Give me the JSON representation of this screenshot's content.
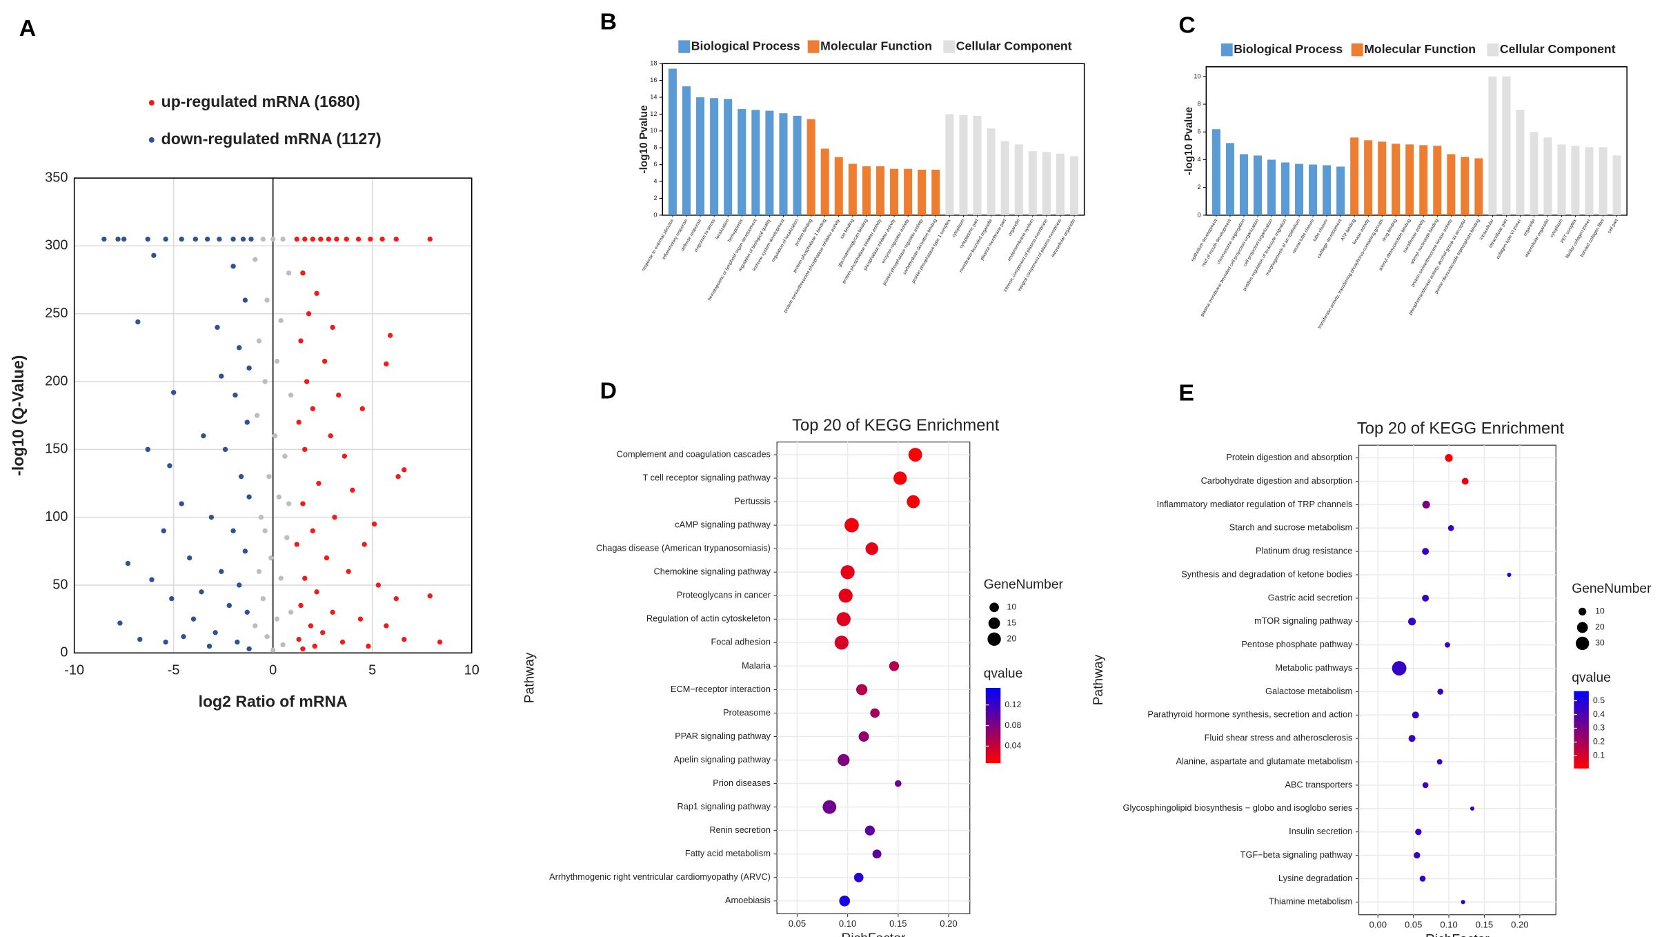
{
  "chart_data": [
    {
      "type": "scatter",
      "panel": "A",
      "xlabel": "log2 Ratio of mRNA",
      "ylabel": "-log10 (Q-Value)",
      "xlim": [
        -10,
        10
      ],
      "ylim": [
        0,
        350
      ],
      "xticks": [
        -10,
        -5,
        0,
        5,
        10
      ],
      "yticks": [
        0,
        50,
        100,
        150,
        200,
        250,
        300,
        350
      ],
      "grid": true,
      "series": [
        {
          "color": "#bdbdbd",
          "x": [
            -0.5,
            0,
            0.5,
            -0.9,
            0.8,
            -0.3,
            0.4,
            -0.7,
            0.2,
            -0.4,
            0.9,
            -0.8,
            0.1,
            0.6,
            -0.2,
            0.3,
            -0.6,
            0.7,
            -0.1,
            0.4,
            -0.5,
            0.2,
            -0.3,
            0.5,
            0,
            -0.9,
            0.9,
            -0.7,
            0.8,
            -0.4
          ],
          "values": [
            305,
            305,
            305,
            290,
            280,
            260,
            245,
            230,
            215,
            200,
            190,
            175,
            160,
            145,
            130,
            115,
            100,
            85,
            70,
            55,
            40,
            25,
            12,
            6,
            2,
            20,
            30,
            60,
            110,
            90
          ]
        },
        {
          "name": "up-regulated mRNA (1680)",
          "color": "#f21b1b",
          "x": [
            1.2,
            1.6,
            2,
            2.4,
            2.8,
            3.2,
            3.7,
            4.3,
            4.9,
            5.5,
            6.2,
            7.9,
            1.5,
            2.2,
            1.8,
            3.0,
            5.9,
            1.4,
            2.6,
            5.7,
            1.7,
            3.3,
            2.0,
            4.5,
            1.3,
            2.9,
            1.6,
            3.6,
            6.6,
            6.3,
            2.3,
            4.0,
            1.5,
            3.1,
            5.1,
            2.0,
            1.2,
            4.6,
            2.7,
            3.8,
            1.6,
            5.3,
            2.2,
            6.2,
            7.9,
            1.4,
            3.0,
            4.4,
            1.9,
            2.5,
            6.6,
            8.4,
            1.3,
            3.5,
            2.1,
            1.5,
            4.8,
            5.7
          ],
          "values": [
            305,
            305,
            305,
            305,
            305,
            305,
            305,
            305,
            305,
            305,
            305,
            305,
            280,
            265,
            250,
            240,
            234,
            230,
            215,
            213,
            200,
            190,
            180,
            180,
            170,
            160,
            150,
            145,
            135,
            130,
            125,
            120,
            110,
            100,
            95,
            90,
            80,
            80,
            70,
            60,
            55,
            50,
            45,
            40,
            42,
            35,
            30,
            25,
            20,
            15,
            10,
            8,
            10,
            8,
            5,
            3,
            5,
            20
          ]
        },
        {
          "name": "down-regulated mRNA (1127)",
          "color": "#2d5296",
          "x": [
            -8.5,
            -7.8,
            -7.5,
            -6.3,
            -5.4,
            -4.6,
            -3.9,
            -3.3,
            -2.7,
            -2.0,
            -1.5,
            -1.1,
            -6.0,
            -6.8,
            -2.0,
            -1.4,
            -2.8,
            -1.7,
            -1.2,
            -2.6,
            -5.0,
            -6.3,
            -1.9,
            -1.3,
            -3.5,
            -5.2,
            -2.4,
            -1.6,
            -4.6,
            -1.2,
            -3.1,
            -2.0,
            -5.5,
            -1.4,
            -7.3,
            -4.2,
            -2.6,
            -6.1,
            -1.7,
            -3.6,
            -5.1,
            -2.2,
            -7.7,
            -1.3,
            -4.0,
            -6.7,
            -2.9,
            -1.8,
            -5.4,
            -3.2,
            -1.2,
            -4.5
          ],
          "values": [
            305,
            305,
            305,
            305,
            305,
            305,
            305,
            305,
            305,
            305,
            305,
            305,
            293,
            244,
            285,
            260,
            240,
            225,
            210,
            204,
            192,
            150,
            190,
            170,
            160,
            138,
            150,
            130,
            110,
            115,
            100,
            90,
            90,
            75,
            66,
            70,
            60,
            54,
            50,
            45,
            40,
            35,
            22,
            30,
            25,
            10,
            15,
            8,
            8,
            5,
            3,
            12
          ]
        }
      ]
    },
    {
      "type": "bar",
      "panel": "B",
      "ylabel": "-log10 Pvalue",
      "ylim": [
        0,
        18
      ],
      "yticks": [
        0,
        2,
        4,
        6,
        8,
        10,
        12,
        14,
        16,
        18
      ],
      "series": [
        {
          "name": "Biological Process",
          "color": "#5b9bd5",
          "categories": [
            "response to external stimulus",
            "inflammatory response",
            "defense response",
            "response to stress",
            "localization",
            "hemopoiesis",
            "hematopoietic or lymphoid organ development",
            "regulation of biological quality",
            "immune system development",
            "regulation of localization"
          ],
          "values": [
            17.4,
            15.3,
            14.0,
            13.9,
            13.8,
            12.6,
            12.5,
            12.4,
            12.1,
            11.8
          ]
        },
        {
          "name": "Molecular Function",
          "color": "#ed7d31",
          "categories": [
            "protein binding",
            "protein phosphatase 1 binding",
            "protein serine/threonine phosphatase inhibitor activity",
            "ion binding",
            "glycosaminoglycan binding",
            "protein phosphatase inhibitor activity",
            "phosphatase inhibitor activity",
            "enzyme regulator activity",
            "protein phosphatase regulator activity",
            "carbohydrate derivative binding"
          ],
          "values": [
            11.4,
            7.9,
            6.9,
            6.1,
            5.8,
            5.8,
            5.5,
            5.5,
            5.4,
            5.4
          ]
        },
        {
          "name": "Cellular Component",
          "color": "#e0e0e0",
          "categories": [
            "protein phosphatase type 1 complex",
            "cytoplasm",
            "cytoplasmic part",
            "membrane-bounded organelle",
            "plasma membrane part",
            "organelle",
            "endomembrane system",
            "intrinsic component of plasma membrane",
            "integral component of plasma membrane",
            "intracellular organelle"
          ],
          "values": [
            12.0,
            11.9,
            11.8,
            10.3,
            8.8,
            8.4,
            7.6,
            7.5,
            7.3,
            7.0
          ]
        }
      ]
    },
    {
      "type": "bar",
      "panel": "C",
      "ylabel": "-log10 Pvalue",
      "ylim": [
        0,
        10.7
      ],
      "yticks": [
        0,
        2,
        4,
        6,
        8,
        10
      ],
      "series": [
        {
          "name": "Biological Process",
          "color": "#5b9bd5",
          "categories": [
            "epithelium development",
            "roof of mouth development",
            "chromosome segregation",
            "plasma membrane bounded cell projection organization",
            "cell projection organization",
            "positive regulation of leukocyte migration",
            "morphogenesis of an epithelium",
            "neural tube closure",
            "tube closure",
            "cartilage development"
          ],
          "values": [
            6.2,
            5.2,
            4.4,
            4.3,
            4.0,
            3.8,
            3.7,
            3.65,
            3.6,
            3.5
          ]
        },
        {
          "name": "Molecular Function",
          "color": "#ed7d31",
          "categories": [
            "ATP binding",
            "kinase activity",
            "transferase activity, transferring phosphorus-containing groups",
            "drug binding",
            "adenyl ribonucleotide binding",
            "transferase activity",
            "adenyl nucleotide binding",
            "protein serine/threonine kinase activity",
            "phosphotransferase activity, alcohol group as acceptor",
            "purine ribonucleoside triphosphate binding"
          ],
          "values": [
            5.6,
            5.4,
            5.3,
            5.15,
            5.1,
            5.05,
            5.0,
            4.4,
            4.2,
            4.1
          ]
        },
        {
          "name": "Cellular Component",
          "color": "#e0e0e0",
          "categories": [
            "intracellular",
            "intracellular part",
            "collagen type VI trimer",
            "organelle",
            "intracellular organelle",
            "cytoplasm",
            "PET complex",
            "fibrillar collagen trimer",
            "banded collagen fibril",
            "cell part"
          ],
          "values": [
            10.0,
            10.0,
            7.6,
            6.0,
            5.6,
            5.1,
            5.0,
            4.9,
            4.9,
            4.3
          ]
        }
      ]
    },
    {
      "type": "bubble",
      "panel": "D",
      "title": "Top 20 of KEGG Enrichment",
      "xlabel": "RichFactor",
      "ylabel": "Pathway",
      "categories": [
        "Complement and coagulation cascades",
        "T cell receptor signaling pathway",
        "Pertussis",
        "cAMP signaling pathway",
        "Chagas disease (American trypanosomiasis)",
        "Chemokine signaling pathway",
        "Proteoglycans in cancer",
        "Regulation of actin cytoskeleton",
        "Focal adhesion",
        "Malaria",
        "ECM−receptor interaction",
        "Proteasome",
        "PPAR signaling pathway",
        "Apelin signaling pathway",
        "Prion diseases",
        "Rap1 signaling pathway",
        "Renin secretion",
        "Fatty acid metabolism",
        "Arrhythmogenic right ventricular cardiomyopathy (ARVC)",
        "Amoebiasis"
      ],
      "x": [
        0.167,
        0.152,
        0.165,
        0.104,
        0.124,
        0.1,
        0.098,
        0.096,
        0.094,
        0.146,
        0.114,
        0.127,
        0.116,
        0.096,
        0.15,
        0.082,
        0.122,
        0.129,
        0.111,
        0.097
      ],
      "sizes": [
        21,
        20,
        19,
        23,
        18,
        22,
        22,
        22,
        22,
        11,
        14,
        10,
        12,
        16,
        5,
        21,
        11,
        9,
        10,
        13
      ],
      "qvalues": [
        0.005,
        0.01,
        0.01,
        0.015,
        0.02,
        0.02,
        0.02,
        0.025,
        0.03,
        0.05,
        0.05,
        0.06,
        0.07,
        0.08,
        0.09,
        0.09,
        0.1,
        0.1,
        0.13,
        0.14
      ],
      "xlim": [
        0.03,
        0.221
      ],
      "xticks": [
        0.05,
        {
          "value": 0.1,
          "label": "0.10"
        },
        0.15,
        {
          "value": 0.2,
          "label": "0.20"
        }
      ],
      "grid": true,
      "size_title": "GeneNumber",
      "size_ticks": [
        10,
        15,
        20
      ],
      "color_title": "qvalue",
      "color_lim": [
        0.007,
        0.153
      ],
      "color_ticks": [
        0.04,
        0.08,
        0.12
      ],
      "colors": [
        "#ff0000",
        "#0000ff"
      ]
    },
    {
      "type": "bubble",
      "panel": "E",
      "title": "Top 20 of KEGG Enrichment",
      "xlabel": "RichFactor",
      "ylabel": "Pathway",
      "categories": [
        "Protein digestion and absorption",
        "Carbohydrate digestion and absorption",
        "Inflammatory mediator regulation of TRP channels",
        "Starch and sucrose metabolism",
        "Platinum drug resistance",
        "Synthesis and degradation of ketone bodies",
        "Gastric acid secretion",
        "mTOR signaling pathway",
        "Pentose phosphate pathway",
        "Metabolic pathways",
        "Galactose metabolism",
        "Parathyroid hormone synthesis, secretion and action",
        "Fluid shear stress and atherosclerosis",
        "Alanine, aspartate and glutamate metabolism",
        "ABC transporters",
        "Glycosphingolipid biosynthesis − globo and isoglobo series",
        "Insulin secretion",
        "TGF−beta signaling pathway",
        "Lysine degradation",
        "Thiamine metabolism"
      ],
      "x": [
        0.1,
        0.123,
        0.068,
        0.103,
        0.067,
        0.185,
        0.067,
        0.048,
        0.098,
        0.03,
        0.088,
        0.053,
        0.048,
        0.087,
        0.067,
        0.133,
        0.057,
        0.055,
        0.063,
        0.12
      ],
      "sizes": [
        10,
        8,
        10,
        6,
        8,
        3,
        8,
        10,
        5,
        35,
        6,
        8,
        8,
        5,
        6,
        3,
        7,
        7,
        6,
        3
      ],
      "qvalues": [
        0.02,
        0.05,
        0.3,
        0.45,
        0.45,
        0.5,
        0.45,
        0.45,
        0.45,
        0.45,
        0.45,
        0.45,
        0.45,
        0.45,
        0.45,
        0.45,
        0.45,
        0.45,
        0.45,
        0.45
      ],
      "xlim": [
        -0.027,
        0.251
      ],
      "xticks": [
        {
          "value": 0,
          "label": "0.00"
        },
        0.05,
        {
          "value": 0.1,
          "label": "0.10"
        },
        0.15,
        {
          "value": 0.2,
          "label": "0.20"
        }
      ],
      "grid": true,
      "size_title": "GeneNumber",
      "size_ticks": [
        10,
        20,
        30
      ],
      "color_title": "qvalue",
      "color_lim": [
        0.008,
        0.57
      ],
      "color_ticks": [
        0.1,
        0.2,
        0.3,
        0.4,
        0.5
      ],
      "colors": [
        "#ff0000",
        "#0000ff"
      ]
    }
  ]
}
